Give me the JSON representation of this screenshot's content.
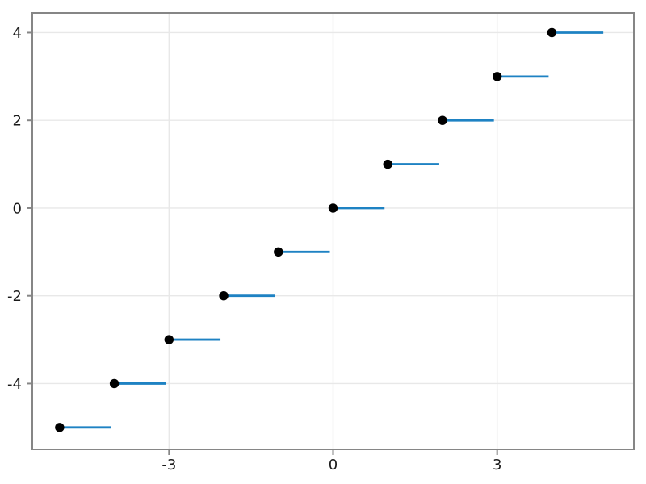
{
  "chart_data": {
    "type": "step",
    "title": "",
    "xlabel": "",
    "ylabel": "",
    "xlim": [
      -5.5,
      5.5
    ],
    "ylim": [
      -5.5,
      4.45
    ],
    "grid": true,
    "legend": "none",
    "x_ticks": [
      {
        "value": -3,
        "label": "-3"
      },
      {
        "value": 0,
        "label": "0"
      },
      {
        "value": 3,
        "label": "3"
      }
    ],
    "y_ticks": [
      {
        "value": -4,
        "label": "-4"
      },
      {
        "value": -2,
        "label": "-2"
      },
      {
        "value": 0,
        "label": "0"
      },
      {
        "value": 2,
        "label": "2"
      },
      {
        "value": 4,
        "label": "4"
      }
    ],
    "series": [
      {
        "name": "floor-function-steps",
        "marker": "filled-circle",
        "points": [
          {
            "x": -5,
            "y": -5
          },
          {
            "x": -4,
            "y": -4
          },
          {
            "x": -3,
            "y": -3
          },
          {
            "x": -2,
            "y": -2
          },
          {
            "x": -1,
            "y": -1
          },
          {
            "x": 0,
            "y": 0
          },
          {
            "x": 1,
            "y": 1
          },
          {
            "x": 2,
            "y": 2
          },
          {
            "x": 3,
            "y": 3
          },
          {
            "x": 4,
            "y": 4
          }
        ],
        "segments": [
          {
            "x1": -5,
            "x2": -4,
            "y": -5
          },
          {
            "x1": -4,
            "x2": -3,
            "y": -4
          },
          {
            "x1": -3,
            "x2": -2,
            "y": -3
          },
          {
            "x1": -2,
            "x2": -1,
            "y": -2
          },
          {
            "x1": -1,
            "x2": 0,
            "y": -1
          },
          {
            "x1": 0,
            "x2": 1,
            "y": 0
          },
          {
            "x1": 1,
            "x2": 2,
            "y": 1
          },
          {
            "x1": 2,
            "x2": 3,
            "y": 2
          },
          {
            "x1": 3,
            "x2": 4,
            "y": 3
          },
          {
            "x1": 4,
            "x2": 5,
            "y": 4
          }
        ]
      }
    ],
    "style": {
      "background": "#ffffff",
      "line_color": "#1e82c3",
      "marker_color": "#000000",
      "grid_color": "#e8e8e8",
      "frame_color": "#868686",
      "tick_color": "#868686",
      "tick_label_color": "#1a1a1a"
    }
  }
}
